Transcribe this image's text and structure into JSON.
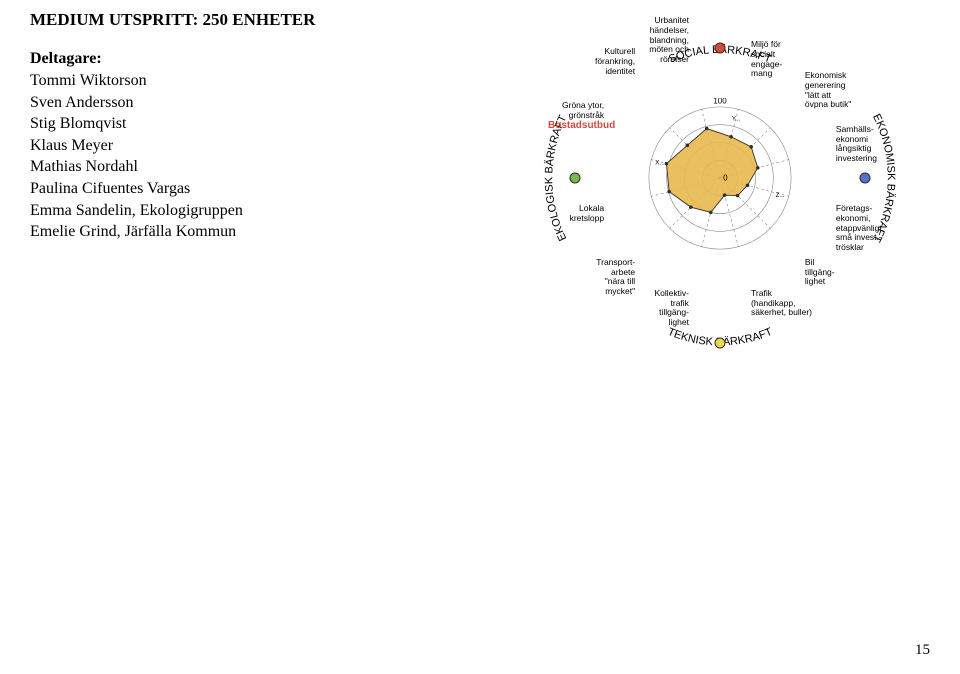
{
  "header": {
    "title": "MEDIUM UTSPRITT: 250 ENHETER"
  },
  "participants": {
    "heading": "Deltagare:",
    "list": [
      "Tommi Wiktorson",
      "Sven Andersson",
      "Stig Blomqvist",
      "Klaus Meyer",
      "Mathias Nordahl",
      "Paulina Cifuentes Vargas",
      "Emma Sandelin, Ekologigruppen",
      "Emelie Grind, Järfälla Kommun"
    ]
  },
  "chart": {
    "curved_labels": {
      "top": "SOCIAL BÄRKRAFT",
      "left": "EKOLOGISK BÄRKRAFT",
      "right": "EKONOMISK BÄRKRAFT",
      "bottom": "TEKNISK BÄRKRAFT"
    },
    "radii": [
      20,
      40,
      60,
      80
    ],
    "scale_outer": "100",
    "scale_inner": "0",
    "axes": [
      {
        "angle": 15,
        "short": "Y...",
        "label": "Miljö för\nsocialt\nengage-\nmang"
      },
      {
        "angle": 45,
        "short": "",
        "label": "Ekonomisk\ngenerering\n\"lätt att\növpna butik\""
      },
      {
        "angle": 75,
        "short": "",
        "label": "Samhälls-\nekonomi\nlångsiktig\ninvestering"
      },
      {
        "angle": 105,
        "short": "Z...",
        "label": "Företags-\nekonomi,\netappvänligt,\nsmå invest.-\ntrösklar"
      },
      {
        "angle": 135,
        "short": "",
        "label": "Bil\ntillgäng-\nlighet"
      },
      {
        "angle": 165,
        "short": "",
        "label": "Trafik\n(handikapp,\nsäkerhet, buller)"
      },
      {
        "angle": 195,
        "short": "",
        "label": "Kollektiv-\ntrafik\ntillgäng-\nlighet"
      },
      {
        "angle": 225,
        "short": "",
        "label": "Transport-\narbete\n\"nära till\nmycket\""
      },
      {
        "angle": 255,
        "short": "",
        "label": "Lokala\nkretslopp"
      },
      {
        "angle": 285,
        "short": "X...",
        "label": "Gröna ytor,\ngrönstråk"
      },
      {
        "angle": 315,
        "short": "",
        "label": "Kulturell\nförankring,\nidentitet"
      },
      {
        "angle": 345,
        "short": "",
        "label": "Urbanitet\nhändelser,\nblandning,\nmöten och\nrörelser"
      }
    ],
    "bostads_label": "Bostadsutbud",
    "series": {
      "fill_color": "#e8b84f",
      "stroke_color": "#2f2f2f",
      "values": [
        60,
        62,
        55,
        40,
        35,
        25,
        50,
        58,
        74,
        78,
        65,
        72
      ]
    },
    "group_dots": [
      {
        "angle": 0,
        "color": "#d34a3f"
      },
      {
        "angle": 90,
        "color": "#5a6fc7"
      },
      {
        "angle": 180,
        "color": "#e8d94f"
      },
      {
        "angle": 270,
        "color": "#7ab84f"
      }
    ],
    "style": {
      "grid_color": "#777777",
      "spoke_color": "#777777",
      "spoke_dash": "3,3",
      "background": "#ffffff"
    }
  },
  "page_number": "15"
}
